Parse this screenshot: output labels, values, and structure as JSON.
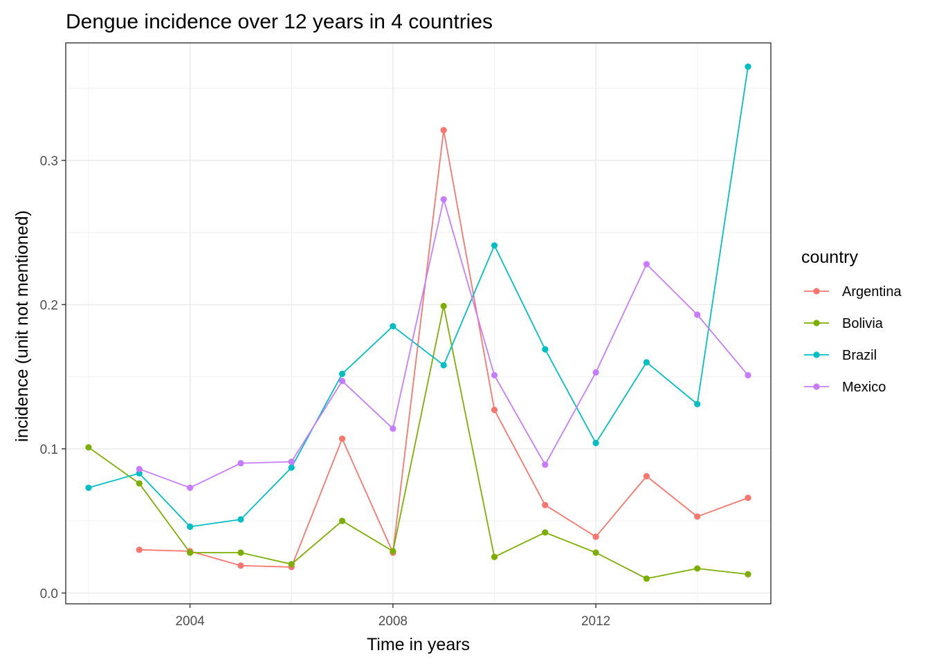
{
  "chart_data": {
    "type": "line",
    "title": "Dengue incidence over 12 years in 4 countries",
    "xlabel": "Time in years",
    "ylabel": "incidence (unit not mentioned)",
    "xlim": [
      2001.55,
      2015.45
    ],
    "ylim": [
      -0.0075,
      0.3815
    ],
    "x_ticks": [
      2004,
      2008,
      2012
    ],
    "x_tick_labels": [
      "2004",
      "2008",
      "2012"
    ],
    "y_ticks": [
      0.0,
      0.1,
      0.2,
      0.3
    ],
    "y_tick_labels": [
      "0.0",
      "0.1",
      "0.2",
      "0.3"
    ],
    "grid": true,
    "legend": {
      "title": "country",
      "position": "right"
    },
    "series": [
      {
        "name": "Argentina",
        "color": "#F8766D",
        "x": [
          2003,
          2004,
          2005,
          2006,
          2007,
          2008,
          2009,
          2010,
          2011,
          2012,
          2013,
          2014,
          2015
        ],
        "values": [
          0.03,
          0.029,
          0.019,
          0.018,
          0.107,
          0.028,
          0.321,
          0.127,
          0.061,
          0.039,
          0.081,
          0.053,
          0.066
        ]
      },
      {
        "name": "Bolivia",
        "color": "#7CAE00",
        "x": [
          2002,
          2003,
          2004,
          2005,
          2006,
          2007,
          2008,
          2009,
          2010,
          2011,
          2012,
          2013,
          2014,
          2015
        ],
        "values": [
          0.101,
          0.076,
          0.028,
          0.028,
          0.02,
          0.05,
          0.029,
          0.199,
          0.025,
          0.042,
          0.028,
          0.01,
          0.017,
          0.013
        ]
      },
      {
        "name": "Brazil",
        "color": "#00BFC4",
        "x": [
          2002,
          2003,
          2004,
          2005,
          2006,
          2007,
          2008,
          2009,
          2010,
          2011,
          2012,
          2013,
          2014,
          2015
        ],
        "values": [
          0.073,
          0.083,
          0.046,
          0.051,
          0.087,
          0.152,
          0.185,
          0.158,
          0.241,
          0.169,
          0.104,
          0.16,
          0.131,
          0.365
        ]
      },
      {
        "name": "Mexico",
        "color": "#C77CFF",
        "x": [
          2003,
          2004,
          2005,
          2006,
          2007,
          2008,
          2009,
          2010,
          2011,
          2012,
          2013,
          2014,
          2015
        ],
        "values": [
          0.086,
          0.073,
          0.09,
          0.091,
          0.147,
          0.114,
          0.273,
          0.151,
          0.089,
          0.153,
          0.228,
          0.193,
          0.151
        ]
      }
    ]
  }
}
